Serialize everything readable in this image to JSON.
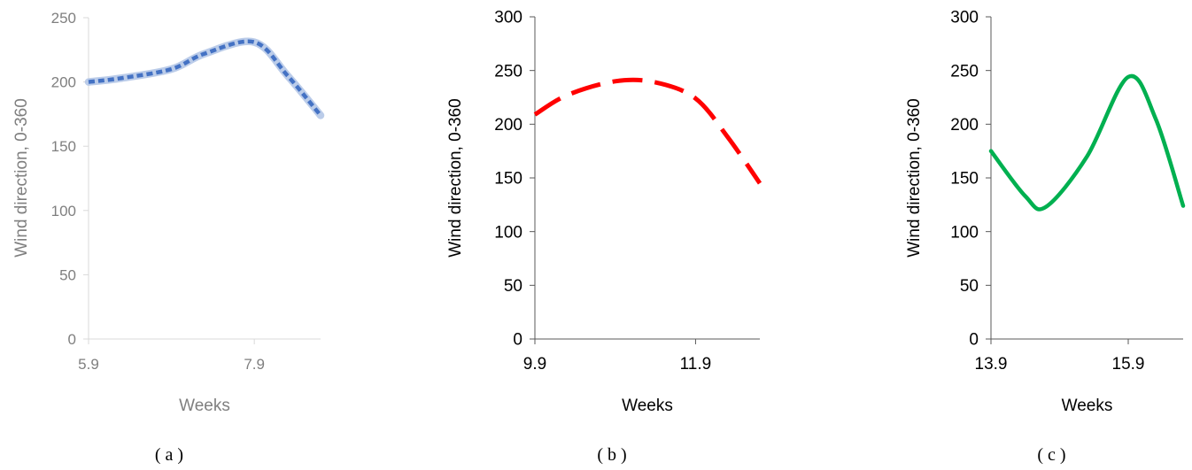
{
  "chart_data": [
    {
      "type": "line",
      "panel_label": "( a )",
      "xlabel": "Weeks",
      "ylabel": "Wind direction, 0-360",
      "x_ticks": [
        "5.9",
        "7.9"
      ],
      "y_ticks": [
        "0",
        "50",
        "100",
        "150",
        "200",
        "250"
      ],
      "ylim": [
        0,
        250
      ],
      "xlim": [
        5.9,
        8.7
      ],
      "x": [
        5.9,
        6.3,
        6.9,
        7.3,
        7.9,
        8.3,
        8.7
      ],
      "values": [
        200,
        203,
        210,
        222,
        231,
        205,
        174
      ],
      "line_style": "dashed-glow",
      "color": "#4472C4",
      "text_color": "#7f7f7f",
      "axis_color": "#d9d9d9"
    },
    {
      "type": "line",
      "panel_label": "( b )",
      "xlabel": "Weeks",
      "ylabel": "Wind direction, 0-360",
      "x_ticks": [
        "9.9",
        "11.9"
      ],
      "y_ticks": [
        "0",
        "50",
        "100",
        "150",
        "200",
        "250",
        "300"
      ],
      "ylim": [
        0,
        300
      ],
      "xlim": [
        9.9,
        12.7
      ],
      "x": [
        9.9,
        10.3,
        10.9,
        11.4,
        11.9,
        12.3,
        12.7
      ],
      "values": [
        209,
        227,
        240,
        239,
        224,
        188,
        145
      ],
      "line_style": "long-dash",
      "color": "#ff0000",
      "text_color": "#000000",
      "axis_color": "#595959"
    },
    {
      "type": "line",
      "panel_label": "( c )",
      "xlabel": "Weeks",
      "ylabel": "Wind direction, 0-360",
      "x_ticks": [
        "13.9",
        "15.9"
      ],
      "y_ticks": [
        "0",
        "50",
        "100",
        "150",
        "200",
        "250",
        "300"
      ],
      "ylim": [
        0,
        300
      ],
      "xlim": [
        13.9,
        16.7
      ],
      "x": [
        13.9,
        14.4,
        14.7,
        15.3,
        15.9,
        16.3,
        16.7
      ],
      "values": [
        175,
        133,
        123,
        170,
        244,
        205,
        124
      ],
      "line_style": "solid",
      "color": "#00b050",
      "text_color": "#000000",
      "axis_color": "#595959"
    }
  ]
}
